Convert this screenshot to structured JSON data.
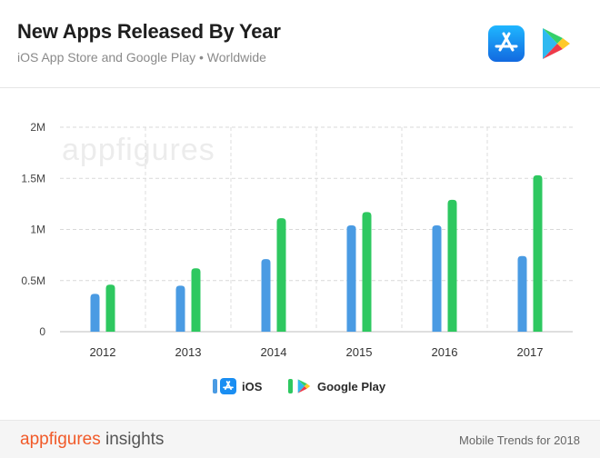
{
  "header": {
    "title": "New Apps Released By Year",
    "subtitle": "iOS App Store and Google Play • Worldwide",
    "icons": [
      "app-store-icon",
      "google-play-icon"
    ]
  },
  "watermark": "appfigures",
  "chart_data": {
    "type": "bar",
    "categories": [
      "2012",
      "2013",
      "2014",
      "2015",
      "2016",
      "2017"
    ],
    "series": [
      {
        "name": "iOS",
        "color": "#4a9be3",
        "values": [
          370000,
          450000,
          710000,
          1040000,
          1040000,
          740000
        ]
      },
      {
        "name": "Google Play",
        "color": "#2ec860",
        "values": [
          460000,
          620000,
          1110000,
          1170000,
          1290000,
          1530000
        ]
      }
    ],
    "y_ticks": [
      "0",
      "0.5M",
      "1M",
      "1.5M",
      "2M"
    ],
    "ylim": [
      0,
      2000000
    ],
    "grid": true,
    "legend": "bottom-center"
  },
  "legend": {
    "ios_label": "iOS",
    "play_label": "Google Play"
  },
  "footer": {
    "brand_a": "appfigures",
    "brand_b": " insights",
    "report": "Mobile Trends for 2018"
  }
}
